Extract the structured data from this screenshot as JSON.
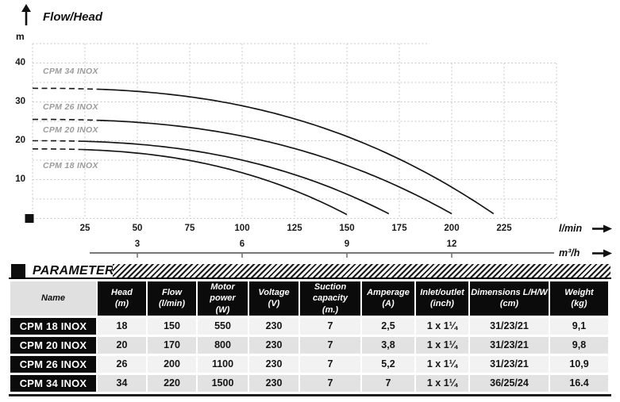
{
  "chart": {
    "title": "Flow/Head",
    "y_axis_unit": "m",
    "x_axis_unit": "l/min",
    "x2_axis_unit": "m³/h",
    "y_ticks": [
      10,
      20,
      30,
      40
    ],
    "x_ticks": [
      25,
      50,
      75,
      100,
      125,
      150,
      175,
      200,
      225
    ],
    "x2_ticks": [
      {
        "label": "3",
        "at_lmin": 50
      },
      {
        "label": "6",
        "at_lmin": 100
      },
      {
        "label": "9",
        "at_lmin": 150
      },
      {
        "label": "12",
        "at_lmin": 200
      }
    ]
  },
  "chart_data": {
    "type": "line",
    "title": "Flow/Head",
    "xlabel": "l/min",
    "xlabel_secondary": "m³/h",
    "ylabel": "m",
    "xlim": [
      0,
      250
    ],
    "ylim": [
      0,
      45
    ],
    "grid": true,
    "curve_style": "head = max_head - (max_head - end_head) * (Q/max_flow)^2.5, dashed near Q=0",
    "series": [
      {
        "name": "CPM 34 INOX",
        "max_head_m": 33.5,
        "max_flow_lmin": 220,
        "end_head_m": 1.2,
        "dashed_until_lmin": 31,
        "points": [
          [
            0,
            33.5
          ],
          [
            50,
            32.3
          ],
          [
            100,
            29.0
          ],
          [
            150,
            23.2
          ],
          [
            200,
            13.0
          ],
          [
            220,
            1.2
          ]
        ]
      },
      {
        "name": "CPM 26 INOX",
        "max_head_m": 25.5,
        "max_flow_lmin": 200,
        "end_head_m": 1.2,
        "dashed_until_lmin": 31,
        "points": [
          [
            0,
            25.5
          ],
          [
            50,
            24.3
          ],
          [
            100,
            21.2
          ],
          [
            150,
            14.8
          ],
          [
            200,
            1.2
          ]
        ]
      },
      {
        "name": "CPM 20 INOX",
        "max_head_m": 20.0,
        "max_flow_lmin": 170,
        "end_head_m": 1.2,
        "dashed_until_lmin": 24,
        "points": [
          [
            0,
            20.0
          ],
          [
            50,
            18.8
          ],
          [
            100,
            15.2
          ],
          [
            150,
            7.5
          ],
          [
            170,
            1.2
          ]
        ]
      },
      {
        "name": "CPM 18 INOX",
        "max_head_m": 17.9,
        "max_flow_lmin": 150,
        "end_head_m": 1.0,
        "dashed_until_lmin": 24,
        "points": [
          [
            0,
            17.9
          ],
          [
            50,
            16.5
          ],
          [
            100,
            12.3
          ],
          [
            150,
            1.0
          ]
        ]
      }
    ]
  },
  "parameters": {
    "section_title": "PARAMETERS",
    "columns": [
      {
        "label": "Name",
        "unit": ""
      },
      {
        "label": "Head",
        "unit": "(m)"
      },
      {
        "label": "Flow",
        "unit": "(l/min)"
      },
      {
        "label": "Motor power",
        "unit": "(W)"
      },
      {
        "label": "Voltage",
        "unit": "(V)"
      },
      {
        "label": "Suction capacity",
        "unit": "(m.)"
      },
      {
        "label": "Amperage",
        "unit": "(A)"
      },
      {
        "label": "Inlet/outlet",
        "unit": "(inch)"
      },
      {
        "label": "Dimensions L/H/W",
        "unit": "(cm)"
      },
      {
        "label": "Weight",
        "unit": "(kg)"
      }
    ],
    "rows": [
      [
        "CPM 18 INOX",
        "18",
        "150",
        "550",
        "230",
        "7",
        "2,5",
        "1 x 1¼",
        "31/23/21",
        "9,1"
      ],
      [
        "CPM 20 INOX",
        "20",
        "170",
        "800",
        "230",
        "7",
        "3,8",
        "1 x 1¼",
        "31/23/21",
        "9,8"
      ],
      [
        "CPM 26 INOX",
        "26",
        "200",
        "1100",
        "230",
        "7",
        "5,2",
        "1 x 1¼",
        "31/23/21",
        "10,9"
      ],
      [
        "CPM 34 INOX",
        "34",
        "220",
        "1500",
        "230",
        "7",
        "7",
        "1 x 1¼",
        "36/25/24",
        "16.4"
      ]
    ]
  },
  "colors": {
    "curve": "#161616",
    "grid": "#c9c9c9",
    "curve_label": "#9b9b9b",
    "secondary_axis": "#777777",
    "header_bg": "#0b0b0b",
    "row_light": "#f2f2f2",
    "row_dark": "#e2e2e2"
  }
}
